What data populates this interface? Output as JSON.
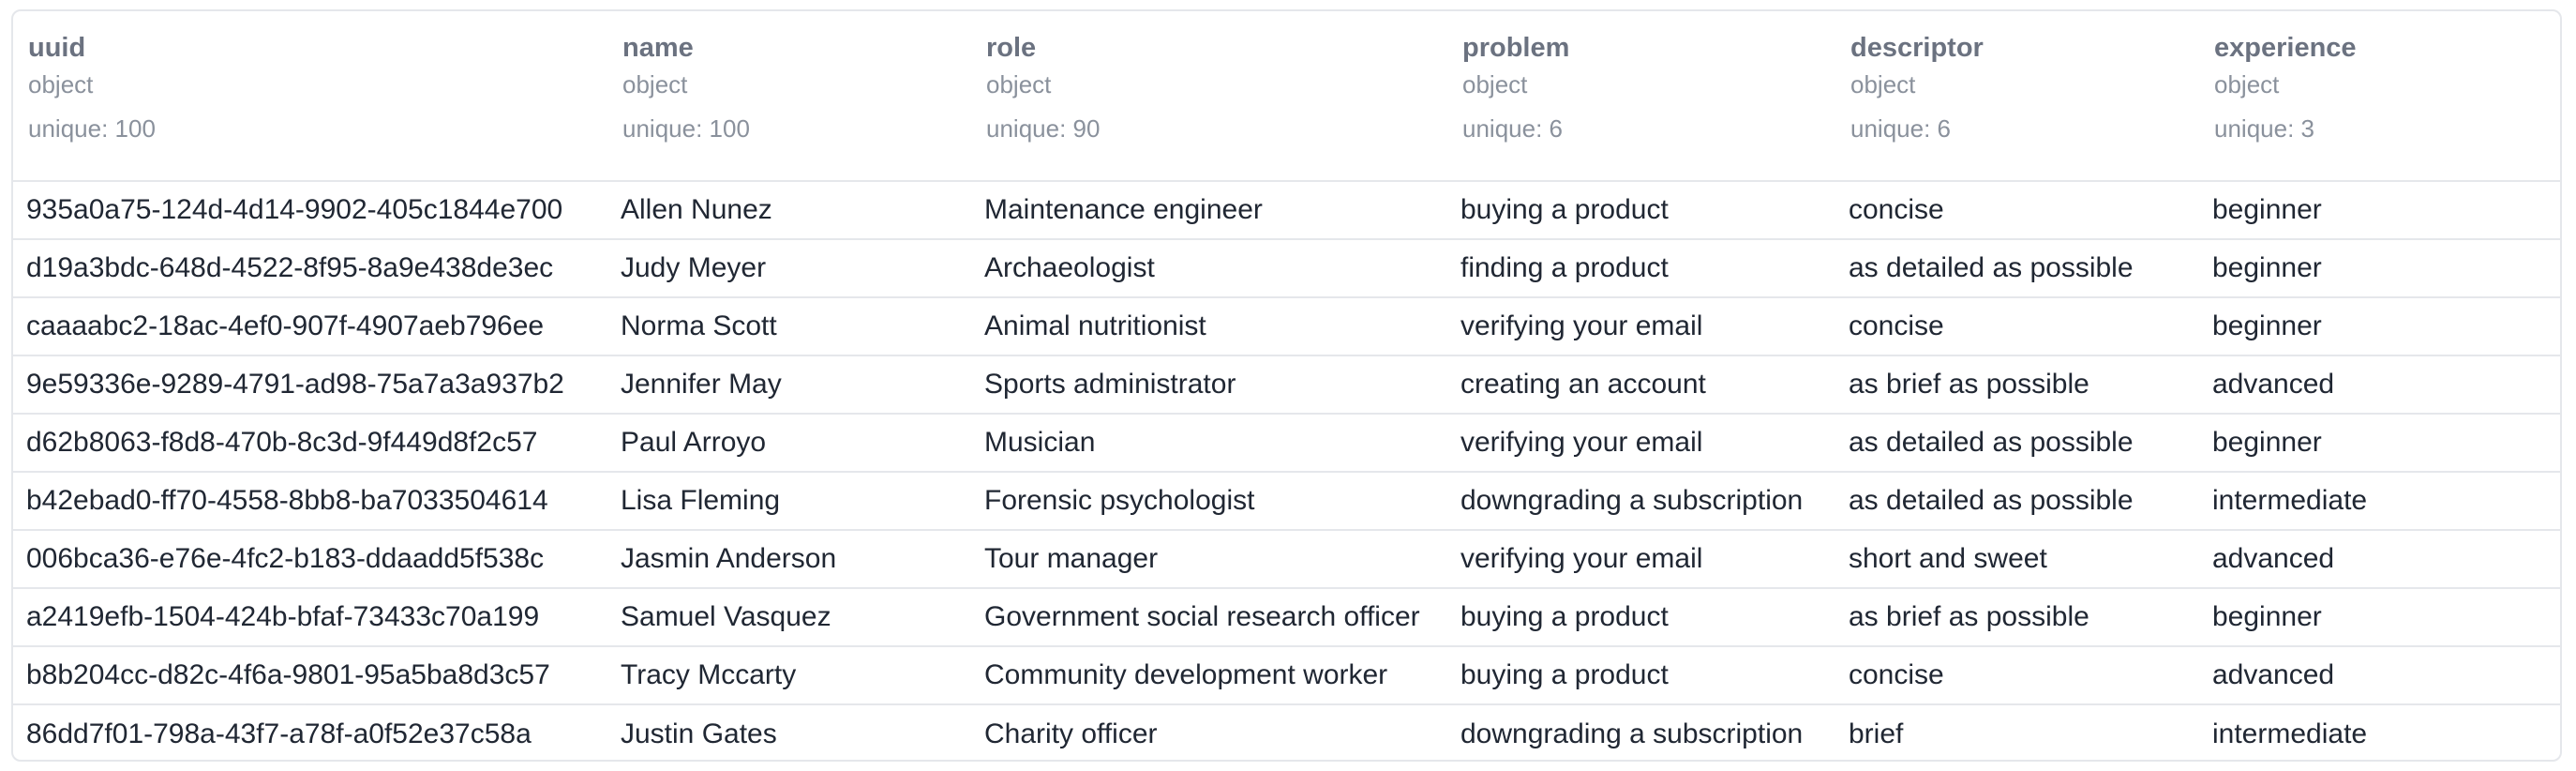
{
  "table": {
    "unique_label": "unique:",
    "columns": [
      {
        "key": "uuid",
        "name": "uuid",
        "dtype": "object",
        "unique": "100"
      },
      {
        "key": "name",
        "name": "name",
        "dtype": "object",
        "unique": "100"
      },
      {
        "key": "role",
        "name": "role",
        "dtype": "object",
        "unique": "90"
      },
      {
        "key": "problem",
        "name": "problem",
        "dtype": "object",
        "unique": "6"
      },
      {
        "key": "descriptor",
        "name": "descriptor",
        "dtype": "object",
        "unique": "6"
      },
      {
        "key": "experience",
        "name": "experience",
        "dtype": "object",
        "unique": "3"
      }
    ],
    "rows": [
      [
        "935a0a75-124d-4d14-9902-405c1844e700",
        "Allen Nunez",
        "Maintenance engineer",
        "buying a product",
        "concise",
        "beginner"
      ],
      [
        "d19a3bdc-648d-4522-8f95-8a9e438de3ec",
        "Judy Meyer",
        "Archaeologist",
        "finding a product",
        "as detailed as possible",
        "beginner"
      ],
      [
        "caaaabc2-18ac-4ef0-907f-4907aeb796ee",
        "Norma Scott",
        "Animal nutritionist",
        "verifying your email",
        "concise",
        "beginner"
      ],
      [
        "9e59336e-9289-4791-ad98-75a7a3a937b2",
        "Jennifer May",
        "Sports administrator",
        "creating an account",
        "as brief as possible",
        "advanced"
      ],
      [
        "d62b8063-f8d8-470b-8c3d-9f449d8f2c57",
        "Paul Arroyo",
        "Musician",
        "verifying your email",
        "as detailed as possible",
        "beginner"
      ],
      [
        "b42ebad0-ff70-4558-8bb8-ba7033504614",
        "Lisa Fleming",
        "Forensic psychologist",
        "downgrading a subscription",
        "as detailed as possible",
        "intermediate"
      ],
      [
        "006bca36-e76e-4fc2-b183-ddaadd5f538c",
        "Jasmin Anderson",
        "Tour manager",
        "verifying your email",
        "short and sweet",
        "advanced"
      ],
      [
        "a2419efb-1504-424b-bfaf-73433c70a199",
        "Samuel Vasquez",
        "Government social research officer",
        "buying a product",
        "as brief as possible",
        "beginner"
      ],
      [
        "b8b204cc-d82c-4f6a-9801-95a5ba8d3c57",
        "Tracy Mccarty",
        "Community development worker",
        "buying a product",
        "concise",
        "advanced"
      ],
      [
        "86dd7f01-798a-43f7-a78f-a0f52e37c58a",
        "Justin Gates",
        "Charity officer",
        "downgrading a subscription",
        "brief",
        "intermediate"
      ]
    ]
  }
}
